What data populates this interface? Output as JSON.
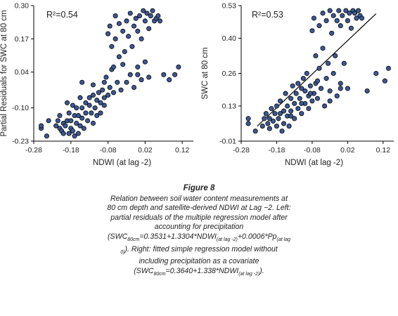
{
  "chart_data": [
    {
      "type": "scatter",
      "xlabel": "NDWI (at lag -2)",
      "ylabel": "Partial Residuals for SWC at 80 cm",
      "annotation": "R²=0.54",
      "xlim": [
        -0.28,
        0.15
      ],
      "ylim": [
        -0.23,
        0.3
      ],
      "xticks": [
        "-0.28",
        "-0.18",
        "-0.08",
        "0.02",
        "0.12"
      ],
      "xtick_values": [
        -0.28,
        -0.18,
        -0.08,
        0.02,
        0.12
      ],
      "yticks": [
        "-0.23",
        "-0.10",
        "0.04",
        "0.17",
        "0.30"
      ],
      "ytick_values": [
        -0.23,
        -0.1,
        0.04,
        0.17,
        0.3
      ],
      "marker_color": "#3b5998",
      "points": [
        [
          -0.26,
          -0.18
        ],
        [
          -0.26,
          -0.17
        ],
        [
          -0.245,
          -0.21
        ],
        [
          -0.24,
          -0.15
        ],
        [
          -0.22,
          -0.17
        ],
        [
          -0.215,
          -0.15
        ],
        [
          -0.21,
          -0.18
        ],
        [
          -0.21,
          -0.13
        ],
        [
          -0.205,
          -0.19
        ],
        [
          -0.2,
          -0.16
        ],
        [
          -0.2,
          -0.2
        ],
        [
          -0.195,
          -0.17
        ],
        [
          -0.19,
          -0.08
        ],
        [
          -0.19,
          -0.15
        ],
        [
          -0.185,
          -0.12
        ],
        [
          -0.185,
          -0.2
        ],
        [
          -0.18,
          -0.18
        ],
        [
          -0.18,
          -0.15
        ],
        [
          -0.175,
          -0.09
        ],
        [
          -0.175,
          -0.19
        ],
        [
          -0.17,
          -0.21
        ],
        [
          -0.17,
          -0.13
        ],
        [
          -0.165,
          -0.16
        ],
        [
          -0.165,
          -0.1
        ],
        [
          -0.16,
          -0.2
        ],
        [
          -0.16,
          -0.13
        ],
        [
          -0.155,
          -0.06
        ],
        [
          -0.155,
          -0.17
        ],
        [
          -0.15,
          -0.14
        ],
        [
          -0.15,
          -0.1
        ],
        [
          -0.145,
          -0.18
        ],
        [
          -0.14,
          -0.08
        ],
        [
          -0.14,
          -0.12
        ],
        [
          -0.135,
          -0.15
        ],
        [
          -0.13,
          -0.09
        ],
        [
          -0.13,
          -0.06
        ],
        [
          -0.125,
          -0.12
        ],
        [
          -0.12,
          -0.01
        ],
        [
          -0.12,
          -0.16
        ],
        [
          -0.115,
          -0.1
        ],
        [
          -0.11,
          -0.07
        ],
        [
          -0.11,
          -0.13
        ],
        [
          -0.105,
          -0.04
        ],
        [
          -0.1,
          -0.08
        ],
        [
          -0.1,
          -0.12
        ],
        [
          -0.095,
          -0.03
        ],
        [
          -0.09,
          0.0
        ],
        [
          -0.09,
          -0.09
        ],
        [
          -0.085,
          0.02
        ],
        [
          -0.08,
          -0.05
        ],
        [
          -0.08,
          0.19
        ],
        [
          -0.075,
          -0.02
        ],
        [
          -0.075,
          0.22
        ],
        [
          -0.07,
          0.05
        ],
        [
          -0.07,
          0.14
        ],
        [
          -0.065,
          -0.04
        ],
        [
          -0.06,
          0.17
        ],
        [
          -0.06,
          0.26
        ],
        [
          -0.055,
          0.0
        ],
        [
          -0.05,
          0.1
        ],
        [
          -0.05,
          0.23
        ],
        [
          -0.045,
          -0.03
        ],
        [
          -0.04,
          0.07
        ],
        [
          -0.04,
          0.2
        ],
        [
          -0.035,
          0.12
        ],
        [
          -0.03,
          0.0
        ],
        [
          -0.03,
          0.24
        ],
        [
          -0.025,
          0.18
        ],
        [
          -0.02,
          0.27
        ],
        [
          -0.02,
          0.03
        ],
        [
          -0.015,
          0.14
        ],
        [
          -0.01,
          0.22
        ],
        [
          -0.01,
          -0.02
        ],
        [
          -0.005,
          0.25
        ],
        [
          0.0,
          0.2
        ],
        [
          0.0,
          0.06
        ],
        [
          0.005,
          0.26
        ],
        [
          0.01,
          0.17
        ],
        [
          0.01,
          0.01
        ],
        [
          0.015,
          0.28
        ],
        [
          0.02,
          0.24
        ],
        [
          0.02,
          0.08
        ],
        [
          0.025,
          0.27
        ],
        [
          0.03,
          0.21
        ],
        [
          0.03,
          0.02
        ],
        [
          0.035,
          0.26
        ],
        [
          0.04,
          0.28
        ],
        [
          0.045,
          0.24
        ],
        [
          0.05,
          0.25
        ],
        [
          0.055,
          0.26
        ],
        [
          0.06,
          0.24
        ],
        [
          0.07,
          0.03
        ],
        [
          0.085,
          0.01
        ],
        [
          0.1,
          0.03
        ],
        [
          0.11,
          0.06
        ],
        [
          -0.15,
          0.0
        ],
        [
          -0.12,
          -0.05
        ],
        [
          -0.09,
          -0.06
        ],
        [
          -0.065,
          0.06
        ],
        [
          0.0,
          0.03
        ]
      ]
    },
    {
      "type": "scatter",
      "xlabel": "NDWI (at lag -2)",
      "ylabel": "SWC at 80 cm",
      "annotation": "R²=0.53",
      "xlim": [
        -0.28,
        0.15
      ],
      "ylim": [
        -0.01,
        0.53
      ],
      "xticks": [
        "-0.28",
        "-0.18",
        "-0.08",
        "0.02",
        "0.12"
      ],
      "xtick_values": [
        -0.28,
        -0.18,
        -0.08,
        0.02,
        0.12
      ],
      "yticks": [
        "-0.01",
        "0.13",
        "0.26",
        "0.40",
        "0.53"
      ],
      "ytick_values": [
        -0.01,
        0.13,
        0.26,
        0.4,
        0.53
      ],
      "marker_color": "#3b5998",
      "fit_line": {
        "intercept": 0.364,
        "slope": 1.338,
        "x_range": [
          -0.235,
          0.1
        ]
      },
      "points": [
        [
          -0.26,
          0.08
        ],
        [
          -0.26,
          0.06
        ],
        [
          -0.24,
          0.03
        ],
        [
          -0.22,
          0.05
        ],
        [
          -0.215,
          0.08
        ],
        [
          -0.21,
          0.1
        ],
        [
          -0.205,
          0.06
        ],
        [
          -0.2,
          0.08
        ],
        [
          -0.2,
          0.04
        ],
        [
          -0.195,
          0.12
        ],
        [
          -0.19,
          0.07
        ],
        [
          -0.185,
          0.1
        ],
        [
          -0.18,
          0.05
        ],
        [
          -0.18,
          0.13
        ],
        [
          -0.175,
          0.08
        ],
        [
          -0.17,
          0.15
        ],
        [
          -0.165,
          0.03
        ],
        [
          -0.16,
          0.11
        ],
        [
          -0.16,
          0.06
        ],
        [
          -0.155,
          0.18
        ],
        [
          -0.15,
          0.09
        ],
        [
          -0.15,
          0.13
        ],
        [
          -0.145,
          0.05
        ],
        [
          -0.14,
          0.16
        ],
        [
          -0.14,
          0.11
        ],
        [
          -0.135,
          0.21
        ],
        [
          -0.13,
          0.08
        ],
        [
          -0.13,
          0.14
        ],
        [
          -0.125,
          0.18
        ],
        [
          -0.12,
          0.12
        ],
        [
          -0.12,
          0.22
        ],
        [
          -0.115,
          0.16
        ],
        [
          -0.11,
          0.2
        ],
        [
          -0.11,
          0.1
        ],
        [
          -0.105,
          0.24
        ],
        [
          -0.1,
          0.14
        ],
        [
          -0.1,
          0.19
        ],
        [
          -0.095,
          0.26
        ],
        [
          -0.09,
          0.12
        ],
        [
          -0.09,
          0.17
        ],
        [
          -0.085,
          0.21
        ],
        [
          -0.08,
          0.15
        ],
        [
          -0.08,
          0.43
        ],
        [
          -0.075,
          0.18
        ],
        [
          -0.075,
          0.48
        ],
        [
          -0.07,
          0.22
        ],
        [
          -0.07,
          0.33
        ],
        [
          -0.065,
          0.16
        ],
        [
          -0.06,
          0.45
        ],
        [
          -0.06,
          0.28
        ],
        [
          -0.055,
          0.2
        ],
        [
          -0.05,
          0.5
        ],
        [
          -0.05,
          0.36
        ],
        [
          -0.045,
          0.13
        ],
        [
          -0.04,
          0.24
        ],
        [
          -0.04,
          0.47
        ],
        [
          -0.035,
          0.3
        ],
        [
          -0.03,
          0.19
        ],
        [
          -0.03,
          0.51
        ],
        [
          -0.025,
          0.42
        ],
        [
          -0.02,
          0.26
        ],
        [
          -0.02,
          0.49
        ],
        [
          -0.015,
          0.33
        ],
        [
          -0.01,
          0.47
        ],
        [
          -0.01,
          0.17
        ],
        [
          -0.005,
          0.51
        ],
        [
          0.0,
          0.45
        ],
        [
          0.0,
          0.22
        ],
        [
          0.005,
          0.49
        ],
        [
          0.01,
          0.3
        ],
        [
          0.015,
          0.51
        ],
        [
          0.02,
          0.47
        ],
        [
          0.02,
          0.2
        ],
        [
          0.025,
          0.5
        ],
        [
          0.03,
          0.44
        ],
        [
          0.035,
          0.51
        ],
        [
          0.04,
          0.5
        ],
        [
          0.045,
          0.48
        ],
        [
          0.05,
          0.51
        ],
        [
          0.055,
          0.49
        ],
        [
          0.06,
          0.48
        ],
        [
          0.075,
          0.19
        ],
        [
          0.1,
          0.26
        ],
        [
          0.125,
          0.23
        ],
        [
          0.135,
          0.28
        ],
        [
          -0.17,
          0.1
        ],
        [
          -0.14,
          0.09
        ],
        [
          -0.11,
          0.14
        ],
        [
          -0.085,
          0.18
        ],
        [
          -0.065,
          0.23
        ],
        [
          0.0,
          0.2
        ],
        [
          -0.03,
          0.15
        ]
      ]
    }
  ],
  "caption": {
    "title": "Figure 8",
    "text_1": "Relation between soil water content measurements at 80 cm depth and satellite-derived NDWI at Lag −2. Left: partial residuals of the multiple regression model after accounting for precipitation (SWC",
    "sub_1": "80cm",
    "text_2": "=0.3531+1.3304*NDWI",
    "sub_2": "(at lag -2)",
    "text_3": "+0.0006*Pp",
    "sub_3": "(at lag 0)",
    "text_4": "). Right: fitted simple regression model without including precipitation as a covariate (SWC",
    "sub_4": "80cm",
    "text_5": "=0.3640+1.338*NDWI",
    "sub_5": "(at lag -2)",
    "text_6": ")."
  }
}
